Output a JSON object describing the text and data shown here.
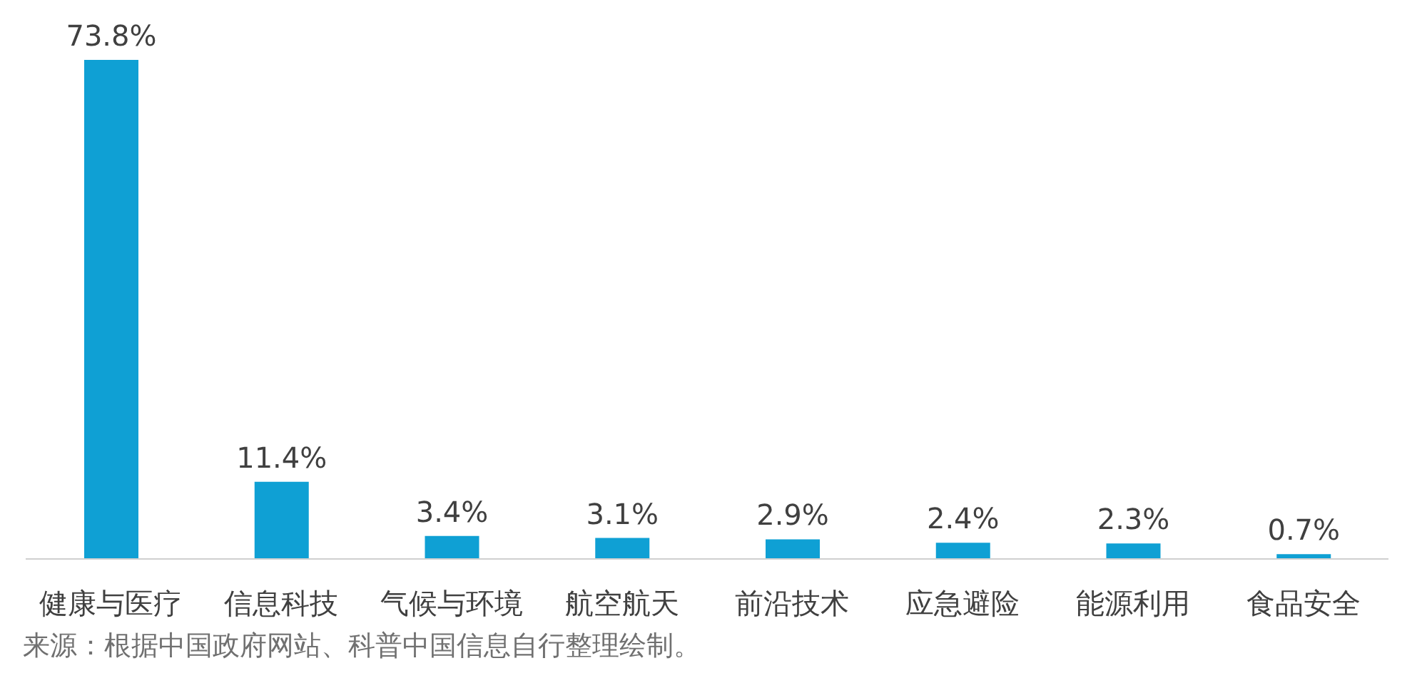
{
  "chart_data": {
    "type": "bar",
    "categories": [
      "健康与医疗",
      "信息科技",
      "气候与环境",
      "航空航天",
      "前沿技术",
      "应急避险",
      "能源利用",
      "食品安全"
    ],
    "values": [
      73.8,
      11.4,
      3.4,
      3.1,
      2.9,
      2.4,
      2.3,
      0.7
    ],
    "value_labels": [
      "73.8%",
      "11.4%",
      "3.4%",
      "3.1%",
      "2.9%",
      "2.4%",
      "2.3%",
      "0.7%"
    ],
    "color": "#0fa0d4",
    "annotations": [
      "来源：根据中国政府网站、科普中国信息自行整理绘制。"
    ]
  }
}
